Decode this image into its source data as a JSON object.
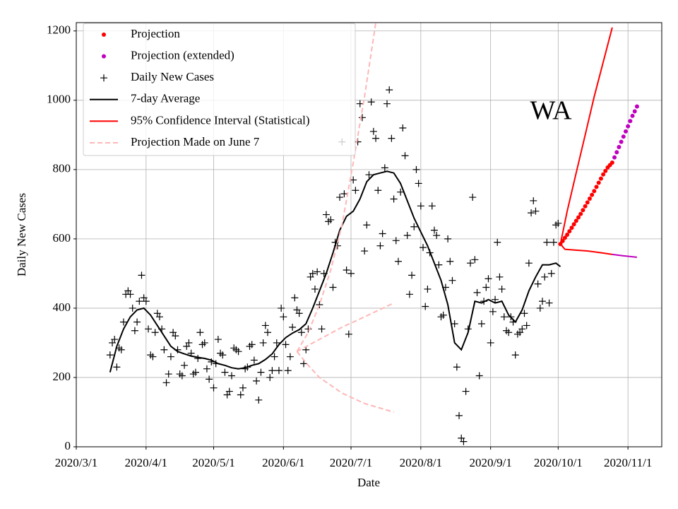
{
  "chart_data": {
    "type": "line",
    "x_label": "Date",
    "y_label": "Daily New Cases",
    "annotation": "WA",
    "xlim": [
      "2020/3/1",
      "2020/11/16"
    ],
    "ylim": [
      0,
      1224
    ],
    "xticks": [
      "2020/3/1",
      "2020/4/1",
      "2020/5/1",
      "2020/6/1",
      "2020/7/1",
      "2020/8/1",
      "2020/9/1",
      "2020/10/1",
      "2020/11/1"
    ],
    "yticks": [
      0,
      200,
      400,
      600,
      800,
      1000,
      1200
    ],
    "grid": true,
    "legend": "upper left",
    "series": [
      {
        "name": "Projection",
        "color": "#ff0000",
        "marker": "o",
        "x": [
          "2020/10/2",
          "2020/10/3",
          "2020/10/4",
          "2020/10/5",
          "2020/10/6",
          "2020/10/7",
          "2020/10/8",
          "2020/10/9",
          "2020/10/10",
          "2020/10/11",
          "2020/10/12",
          "2020/10/13",
          "2020/10/14",
          "2020/10/15",
          "2020/10/16",
          "2020/10/17",
          "2020/10/18",
          "2020/10/19",
          "2020/10/20",
          "2020/10/21",
          "2020/10/22",
          "2020/10/23",
          "2020/10/24",
          "2020/10/25"
        ],
        "values": [
          585,
          594,
          603,
          612,
          622,
          632,
          642,
          652,
          662,
          672,
          683,
          694,
          705,
          716,
          727,
          738,
          750,
          762,
          774,
          786,
          796,
          806,
          813,
          820
        ]
      },
      {
        "name": "Projection (extended)",
        "color": "#bf00bf",
        "marker": "o",
        "x": [
          "2020/10/26",
          "2020/10/27",
          "2020/10/28",
          "2020/10/29",
          "2020/10/30",
          "2020/10/31",
          "2020/11/1",
          "2020/11/2",
          "2020/11/3",
          "2020/11/4",
          "2020/11/5"
        ],
        "values": [
          835,
          850,
          865,
          880,
          895,
          910,
          925,
          940,
          955,
          968,
          982
        ]
      },
      {
        "name": "Daily New Cases",
        "color": "#000000",
        "marker": "+",
        "x": [
          "2020/3/16",
          "2020/3/17",
          "2020/3/18",
          "2020/3/19",
          "2020/3/20",
          "2020/3/21",
          "2020/3/22",
          "2020/3/23",
          "2020/3/24",
          "2020/3/25",
          "2020/3/26",
          "2020/3/27",
          "2020/3/28",
          "2020/3/29",
          "2020/3/30",
          "2020/3/31",
          "2020/4/1",
          "2020/4/2",
          "2020/4/3",
          "2020/4/4",
          "2020/4/5",
          "2020/4/6",
          "2020/4/7",
          "2020/4/8",
          "2020/4/9",
          "2020/4/10",
          "2020/4/11",
          "2020/4/12",
          "2020/4/13",
          "2020/4/14",
          "2020/4/15",
          "2020/4/16",
          "2020/4/17",
          "2020/4/18",
          "2020/4/19",
          "2020/4/20",
          "2020/4/21",
          "2020/4/22",
          "2020/4/23",
          "2020/4/24",
          "2020/4/25",
          "2020/4/26",
          "2020/4/27",
          "2020/4/28",
          "2020/4/29",
          "2020/4/30",
          "2020/5/1",
          "2020/5/2",
          "2020/5/3",
          "2020/5/4",
          "2020/5/5",
          "2020/5/6",
          "2020/5/7",
          "2020/5/8",
          "2020/5/9",
          "2020/5/10",
          "2020/5/11",
          "2020/5/12",
          "2020/5/13",
          "2020/5/14",
          "2020/5/15",
          "2020/5/16",
          "2020/5/17",
          "2020/5/18",
          "2020/5/19",
          "2020/5/20",
          "2020/5/21",
          "2020/5/22",
          "2020/5/23",
          "2020/5/24",
          "2020/5/25",
          "2020/5/26",
          "2020/5/27",
          "2020/5/28",
          "2020/5/29",
          "2020/5/30",
          "2020/5/31",
          "2020/6/1",
          "2020/6/2",
          "2020/6/3",
          "2020/6/4",
          "2020/6/5",
          "2020/6/6",
          "2020/6/7",
          "2020/6/8",
          "2020/6/9",
          "2020/6/10",
          "2020/6/11",
          "2020/6/12",
          "2020/6/13",
          "2020/6/14",
          "2020/6/15",
          "2020/6/16",
          "2020/6/17",
          "2020/6/18",
          "2020/6/19",
          "2020/6/20",
          "2020/6/21",
          "2020/6/22",
          "2020/6/23",
          "2020/6/24",
          "2020/6/25",
          "2020/6/26",
          "2020/6/27",
          "2020/6/28",
          "2020/6/29",
          "2020/6/30",
          "2020/7/1",
          "2020/7/2",
          "2020/7/3",
          "2020/7/4",
          "2020/7/5",
          "2020/7/6",
          "2020/7/7",
          "2020/7/8",
          "2020/7/9",
          "2020/7/10",
          "2020/7/11",
          "2020/7/12",
          "2020/7/13",
          "2020/7/14",
          "2020/7/15",
          "2020/7/16",
          "2020/7/17",
          "2020/7/18",
          "2020/7/19",
          "2020/7/20",
          "2020/7/21",
          "2020/7/22",
          "2020/7/23",
          "2020/7/24",
          "2020/7/25",
          "2020/7/26",
          "2020/7/27",
          "2020/7/28",
          "2020/7/29",
          "2020/7/30",
          "2020/7/31",
          "2020/8/1",
          "2020/8/2",
          "2020/8/3",
          "2020/8/4",
          "2020/8/5",
          "2020/8/6",
          "2020/8/7",
          "2020/8/8",
          "2020/8/9",
          "2020/8/10",
          "2020/8/11",
          "2020/8/12",
          "2020/8/13",
          "2020/8/14",
          "2020/8/15",
          "2020/8/16",
          "2020/8/17",
          "2020/8/18",
          "2020/8/19",
          "2020/8/20",
          "2020/8/21",
          "2020/8/22",
          "2020/8/23",
          "2020/8/24",
          "2020/8/25",
          "2020/8/26",
          "2020/8/27",
          "2020/8/28",
          "2020/8/29",
          "2020/8/30",
          "2020/8/31",
          "2020/9/1",
          "2020/9/2",
          "2020/9/3",
          "2020/9/4",
          "2020/9/5",
          "2020/9/6",
          "2020/9/7",
          "2020/9/8",
          "2020/9/9",
          "2020/9/10",
          "2020/9/11",
          "2020/9/12",
          "2020/9/13",
          "2020/9/14",
          "2020/9/15",
          "2020/9/16",
          "2020/9/17",
          "2020/9/18",
          "2020/9/19",
          "2020/9/20",
          "2020/9/21",
          "2020/9/22",
          "2020/9/23",
          "2020/9/24",
          "2020/9/25",
          "2020/9/26",
          "2020/9/27",
          "2020/9/28",
          "2020/9/29",
          "2020/9/30",
          "2020/10/1"
        ],
        "values": [
          265,
          300,
          310,
          230,
          285,
          280,
          360,
          440,
          450,
          440,
          400,
          335,
          360,
          420,
          495,
          430,
          420,
          340,
          265,
          260,
          330,
          385,
          375,
          340,
          280,
          185,
          210,
          260,
          330,
          320,
          280,
          210,
          205,
          235,
          290,
          300,
          270,
          210,
          215,
          255,
          330,
          295,
          300,
          225,
          195,
          245,
          170,
          240,
          310,
          270,
          265,
          215,
          150,
          160,
          205,
          285,
          280,
          275,
          150,
          170,
          225,
          230,
          290,
          295,
          250,
          190,
          135,
          215,
          300,
          350,
          330,
          200,
          220,
          260,
          300,
          220,
          400,
          375,
          295,
          220,
          260,
          345,
          430,
          395,
          385,
          330,
          240,
          280,
          340,
          490,
          500,
          455,
          505,
          410,
          340,
          500,
          670,
          650,
          655,
          460,
          590,
          580,
          720,
          880,
          730,
          510,
          325,
          500,
          770,
          740,
          880,
          990,
          950,
          565,
          640,
          785,
          995,
          910,
          890,
          740,
          580,
          615,
          805,
          990,
          1030,
          890,
          715,
          595,
          535,
          735,
          920,
          840,
          610,
          440,
          495,
          635,
          800,
          760,
          695,
          575,
          405,
          455,
          560,
          695,
          625,
          610,
          525,
          375,
          380,
          460,
          600,
          535,
          480,
          355,
          230,
          90,
          25,
          15,
          160,
          340,
          530,
          720,
          540,
          445,
          205,
          355,
          420,
          460,
          485,
          300,
          390,
          425,
          590,
          490,
          455,
          375,
          335,
          330,
          375,
          360,
          265,
          325,
          330,
          340,
          385,
          350,
          530,
          675,
          710,
          680,
          470,
          400,
          420,
          490,
          590,
          415,
          500,
          590,
          640,
          645
        ]
      },
      {
        "name": "7-day Average",
        "color": "#000000",
        "linestyle": "-",
        "x": [
          "2020/3/16",
          "2020/3/19",
          "2020/3/22",
          "2020/3/25",
          "2020/3/28",
          "2020/3/31",
          "2020/4/3",
          "2020/4/6",
          "2020/4/9",
          "2020/4/12",
          "2020/4/15",
          "2020/4/18",
          "2020/4/21",
          "2020/4/24",
          "2020/4/27",
          "2020/4/30",
          "2020/5/3",
          "2020/5/6",
          "2020/5/9",
          "2020/5/12",
          "2020/5/15",
          "2020/5/18",
          "2020/5/21",
          "2020/5/24",
          "2020/5/27",
          "2020/5/30",
          "2020/6/2",
          "2020/6/5",
          "2020/6/8",
          "2020/6/11",
          "2020/6/14",
          "2020/6/17",
          "2020/6/20",
          "2020/6/23",
          "2020/6/26",
          "2020/6/29",
          "2020/7/2",
          "2020/7/5",
          "2020/7/8",
          "2020/7/11",
          "2020/7/14",
          "2020/7/17",
          "2020/7/20",
          "2020/7/23",
          "2020/7/26",
          "2020/7/29",
          "2020/8/1",
          "2020/8/4",
          "2020/8/7",
          "2020/8/10",
          "2020/8/13",
          "2020/8/16",
          "2020/8/19",
          "2020/8/22",
          "2020/8/25",
          "2020/8/28",
          "2020/8/31",
          "2020/9/3",
          "2020/9/6",
          "2020/9/9",
          "2020/9/12",
          "2020/9/15",
          "2020/9/18",
          "2020/9/21",
          "2020/9/24",
          "2020/9/27",
          "2020/9/30",
          "2020/10/2"
        ],
        "values": [
          215,
          290,
          340,
          375,
          395,
          400,
          380,
          350,
          320,
          290,
          275,
          268,
          262,
          258,
          255,
          250,
          240,
          235,
          228,
          225,
          228,
          235,
          240,
          252,
          268,
          295,
          315,
          328,
          338,
          355,
          400,
          450,
          500,
          560,
          625,
          665,
          680,
          715,
          765,
          785,
          790,
          795,
          790,
          760,
          710,
          660,
          620,
          580,
          530,
          480,
          410,
          300,
          280,
          330,
          420,
          415,
          425,
          415,
          420,
          380,
          360,
          395,
          450,
          490,
          525,
          525,
          530,
          520
        ]
      },
      {
        "name": "95% Confidence Interval (Statistical)",
        "color": "#ff0000",
        "linestyle": "-",
        "x": [
          "2020/10/2",
          "2020/10/5",
          "2020/10/9",
          "2020/10/13",
          "2020/10/17",
          "2020/10/21",
          "2020/10/25"
        ],
        "values": [
          585,
          680,
          790,
          900,
          1010,
          1110,
          1210
        ]
      },
      {
        "color": "#ff0000",
        "linestyle": "-",
        "x": [
          "2020/10/2",
          "2020/10/4",
          "2020/10/8",
          "2020/10/14",
          "2020/10/20",
          "2020/10/25"
        ],
        "values": [
          585,
          570,
          568,
          565,
          560,
          555
        ]
      },
      {
        "color": "#bf00bf",
        "linestyle": "-",
        "x": [
          "2020/10/25",
          "2020/10/30",
          "2020/11/5"
        ],
        "values": [
          555,
          551,
          547
        ]
      },
      {
        "name": "Projection Made on June 7",
        "color": "#ffb6b6",
        "linestyle": "--",
        "x": [
          "2020/6/7",
          "2020/6/12",
          "2020/6/17",
          "2020/6/22",
          "2020/6/27",
          "2020/7/2",
          "2020/7/7",
          "2020/7/12"
        ],
        "values": [
          275,
          330,
          410,
          510,
          640,
          820,
          1010,
          1224
        ]
      },
      {
        "color": "#ffb6b6",
        "linestyle": "--",
        "x": [
          "2020/6/7",
          "2020/6/17",
          "2020/6/27",
          "2020/7/7",
          "2020/7/20"
        ],
        "values": [
          275,
          310,
          345,
          375,
          415
        ]
      },
      {
        "color": "#ffb6b6",
        "linestyle": "--",
        "x": [
          "2020/6/7",
          "2020/6/12",
          "2020/6/17",
          "2020/6/27",
          "2020/7/7",
          "2020/7/20"
        ],
        "values": [
          275,
          235,
          200,
          155,
          125,
          100
        ]
      }
    ]
  }
}
